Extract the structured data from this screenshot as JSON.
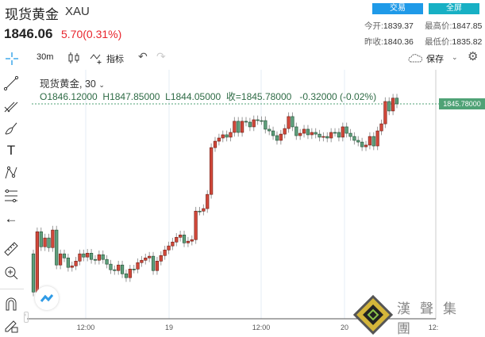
{
  "header": {
    "title": "现货黄金",
    "symbol": "XAU",
    "price": "1846.06",
    "change": "5.70(0.31%)",
    "trade_button": "交易",
    "fullscreen_button": "全屏",
    "stats": [
      {
        "label": "今开:",
        "value": "1839.37"
      },
      {
        "label": "最高价:",
        "value": "1847.85"
      },
      {
        "label": "昨收:",
        "value": "1840.36"
      },
      {
        "label": "最低价:",
        "value": "1835.82"
      }
    ]
  },
  "toolbar": {
    "interval": "30m",
    "indicators": "指标",
    "save": "保存"
  },
  "legend": {
    "series": "现货黄金, 30",
    "open": "O1846.12000",
    "high": "H1847.85000",
    "low": "L1844.05000",
    "close": "收=1845.78000",
    "change": "-0.32000 (-0.02%)"
  },
  "price_label": "1845.78000",
  "time_axis": [
    "12:00",
    "19",
    "12:00",
    "20",
    "12:"
  ],
  "watermark": "漢聲集團",
  "colors": {
    "up": "#d2483a",
    "down": "#5e9f7b",
    "price_line": "#4fa276"
  },
  "chart_data": {
    "type": "candlestick",
    "first_open": 1836.9,
    "last_price": 1845.78,
    "closes": [
      1834.64,
      1838.21,
      1837.32,
      1837.84,
      1837.27,
      1838.31,
      1836.24,
      1836.9,
      1836.66,
      1836.1,
      1836.19,
      1836.47,
      1836.9,
      1836.71,
      1836.94,
      1836.57,
      1836.52,
      1836.85,
      1836.57,
      1836.29,
      1835.96,
      1835.91,
      1836.24,
      1835.72,
      1835.49,
      1836.0,
      1836.0,
      1836.38,
      1836.52,
      1836.66,
      1836.76,
      1835.91,
      1836.47,
      1836.8,
      1837.13,
      1837.37,
      1837.6,
      1837.88,
      1838.02,
      1837.55,
      1837.65,
      1837.74,
      1839.43,
      1839.43,
      1839.58,
      1840.42,
      1843.19,
      1843.57,
      1843.76,
      1843.95,
      1843.81,
      1844.09,
      1844.75,
      1844.09,
      1844.75,
      1844.7,
      1844.42,
      1844.84,
      1844.79,
      1844.79,
      1844.28,
      1844.18,
      1843.9,
      1843.62,
      1843.99,
      1844.32,
      1845.03,
      1844.42,
      1843.9,
      1844.04,
      1844.28,
      1843.95,
      1844.09,
      1843.99,
      1843.81,
      1843.85,
      1843.76,
      1844.09,
      1844.09,
      1843.81,
      1844.42,
      1844.04,
      1843.85,
      1843.62,
      1843.52,
      1843.24,
      1843.34,
      1843.85,
      1843.29,
      1844.18,
      1844.6,
      1845.92,
      1845.36,
      1846.12,
      1845.78
    ]
  }
}
